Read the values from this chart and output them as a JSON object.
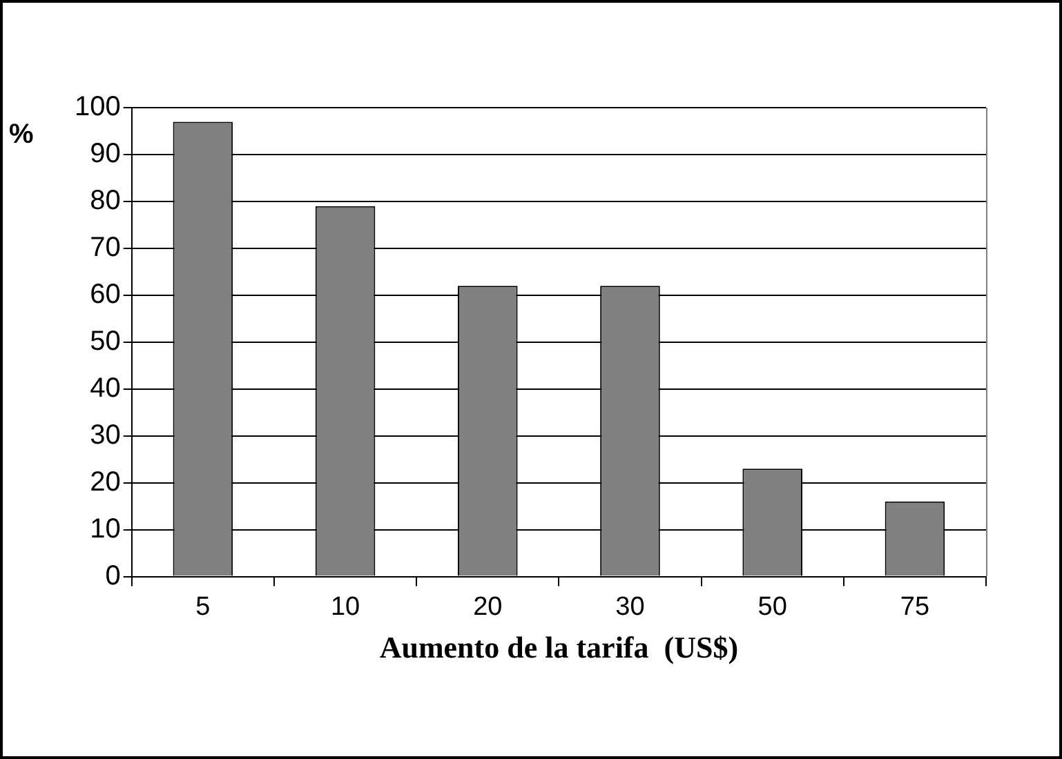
{
  "chart_data": {
    "type": "bar",
    "xlabel": "Aumento de la tarifa  (US$)",
    "ylabel": "%",
    "categories": [
      "5",
      "10",
      "20",
      "30",
      "50",
      "75"
    ],
    "values": [
      97,
      79,
      62,
      62,
      23,
      16
    ],
    "color": "#808080",
    "ylim": [
      0,
      100
    ],
    "yticks": [
      0,
      10,
      20,
      30,
      40,
      50,
      60,
      70,
      80,
      90,
      100
    ],
    "grid": "y",
    "legend": false
  }
}
